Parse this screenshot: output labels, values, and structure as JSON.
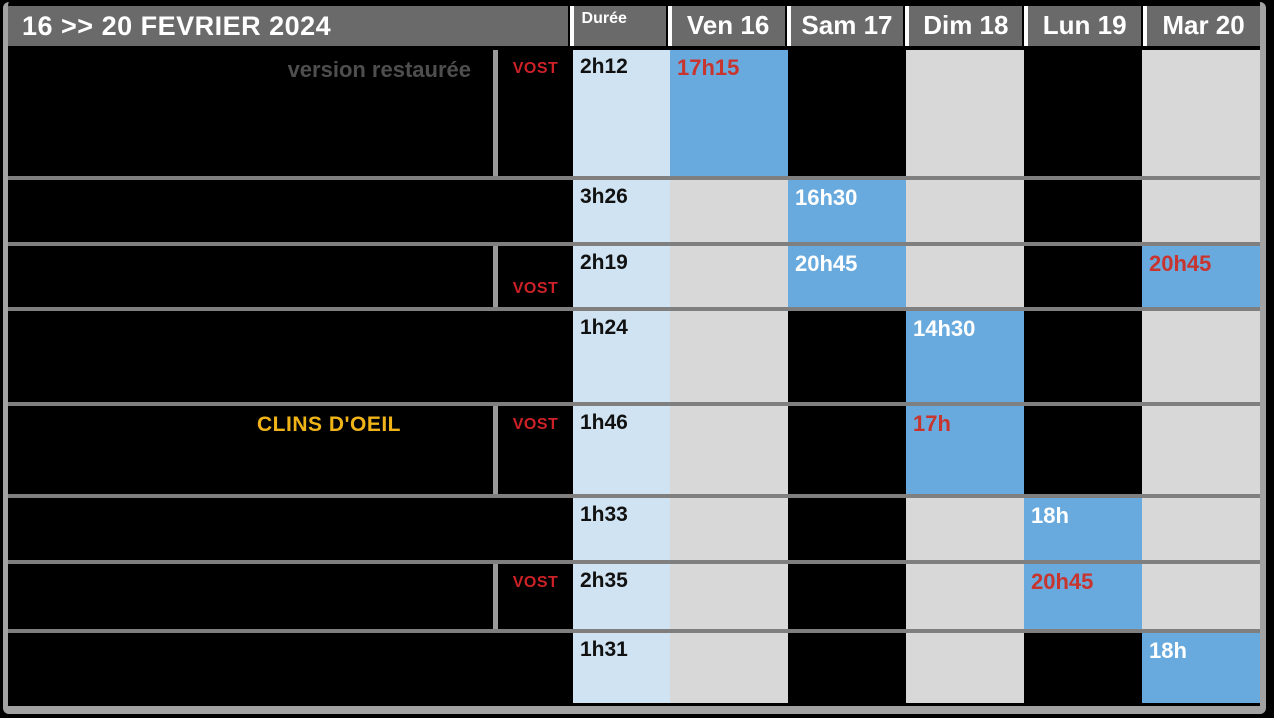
{
  "header": {
    "week_label": "16 >> 20 FEVRIER 2024",
    "duration_label": "Durée",
    "days": [
      "Ven 16",
      "Sam 17",
      "Dim 18",
      "Lun 19",
      "Mar 20"
    ]
  },
  "colors": {
    "showtime_blue": "#68aadd",
    "duration_blue": "#cfe3f2",
    "empty_light_gray": "#d8d8d8",
    "empty_dark": "#000000",
    "header_gray": "#6a6a6a",
    "vost_red": "#cc2127",
    "showtime_red_text": "#c8342e",
    "note_gray": "#4e4e4e",
    "note_yellow": "#f0b418"
  },
  "films": [
    {
      "note": "version restaurée",
      "vost_label": "VOST",
      "duration": "2h12",
      "schedule": [
        {
          "day": "Ven 16",
          "time": "17h15",
          "highlight": "vost-red"
        },
        {
          "day": "Sam 17",
          "empty": "dark"
        },
        {
          "day": "Dim 18",
          "empty": "light"
        },
        {
          "day": "Lun 19",
          "empty": "dark"
        },
        {
          "day": "Mar 20",
          "empty": "light"
        }
      ]
    },
    {
      "duration": "3h26",
      "schedule": [
        {
          "day": "Ven 16",
          "empty": "light"
        },
        {
          "day": "Sam 17",
          "time": "16h30",
          "highlight": "standard-white"
        },
        {
          "day": "Dim 18",
          "empty": "light"
        },
        {
          "day": "Lun 19",
          "empty": "dark"
        },
        {
          "day": "Mar 20",
          "empty": "light"
        }
      ]
    },
    {
      "vost_label": "VOST",
      "duration": "2h19",
      "schedule": [
        {
          "day": "Ven 16",
          "empty": "light"
        },
        {
          "day": "Sam 17",
          "time": "20h45",
          "highlight": "standard-white"
        },
        {
          "day": "Dim 18",
          "empty": "light"
        },
        {
          "day": "Lun 19",
          "empty": "dark"
        },
        {
          "day": "Mar 20",
          "time": "20h45",
          "highlight": "vost-red"
        }
      ]
    },
    {
      "duration": "1h24",
      "schedule": [
        {
          "day": "Ven 16",
          "empty": "light"
        },
        {
          "day": "Sam 17",
          "empty": "dark"
        },
        {
          "day": "Dim 18",
          "time": "14h30",
          "highlight": "standard-white"
        },
        {
          "day": "Lun 19",
          "empty": "dark"
        },
        {
          "day": "Mar 20",
          "empty": "light"
        }
      ]
    },
    {
      "note": "CLINS D'OEIL",
      "vost_label": "VOST",
      "duration": "1h46",
      "schedule": [
        {
          "day": "Ven 16",
          "empty": "light"
        },
        {
          "day": "Sam 17",
          "empty": "dark"
        },
        {
          "day": "Dim 18",
          "time": "17h",
          "highlight": "vost-red"
        },
        {
          "day": "Lun 19",
          "empty": "dark"
        },
        {
          "day": "Mar 20",
          "empty": "light"
        }
      ]
    },
    {
      "duration": "1h33",
      "schedule": [
        {
          "day": "Ven 16",
          "empty": "light"
        },
        {
          "day": "Sam 17",
          "empty": "dark"
        },
        {
          "day": "Dim 18",
          "empty": "light"
        },
        {
          "day": "Lun 19",
          "time": "18h",
          "highlight": "standard-white"
        },
        {
          "day": "Mar 20",
          "empty": "light"
        }
      ]
    },
    {
      "vost_label": "VOST",
      "duration": "2h35",
      "schedule": [
        {
          "day": "Ven 16",
          "empty": "light"
        },
        {
          "day": "Sam 17",
          "empty": "dark"
        },
        {
          "day": "Dim 18",
          "empty": "light"
        },
        {
          "day": "Lun 19",
          "time": "20h45",
          "highlight": "vost-red"
        },
        {
          "day": "Mar 20",
          "empty": "light"
        }
      ]
    },
    {
      "duration": "1h31",
      "schedule": [
        {
          "day": "Ven 16",
          "empty": "light"
        },
        {
          "day": "Sam 17",
          "empty": "dark"
        },
        {
          "day": "Dim 18",
          "empty": "light"
        },
        {
          "day": "Lun 19",
          "empty": "dark"
        },
        {
          "day": "Mar 20",
          "time": "18h",
          "highlight": "standard-white"
        }
      ]
    }
  ]
}
